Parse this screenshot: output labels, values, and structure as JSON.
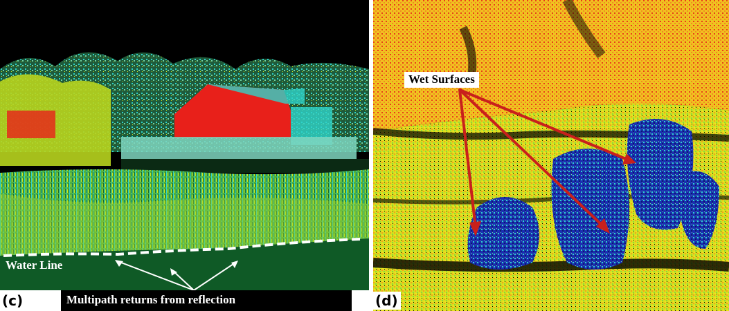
{
  "panels": {
    "c": {
      "letter": "(c)",
      "water_line_label": "Water Line",
      "multipath_label": "Multipath returns from reflection"
    },
    "d": {
      "letter": "(d)",
      "wet_surfaces_label": "Wet Surfaces"
    }
  },
  "colors": {
    "background": "#000000",
    "building_red": "#e8201a",
    "cyan": "#2fd3c9",
    "yellow_green": "#c6e61e",
    "yellow": "#f2e020",
    "orange": "#f08a22",
    "blue": "#1b2fb0",
    "water_green": "#0f5a26",
    "arrow_red": "#c8201c",
    "arrow_white": "#ffffff"
  }
}
